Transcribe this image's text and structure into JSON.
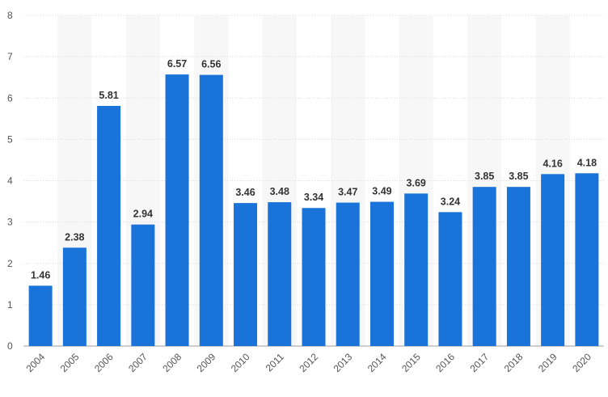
{
  "chart_data": {
    "type": "bar",
    "title": "",
    "xlabel": "",
    "ylabel": "",
    "ylim": [
      0,
      8
    ],
    "yticks": [
      "0",
      "1",
      "2",
      "3",
      "4",
      "5",
      "6",
      "7",
      "8"
    ],
    "grid": true,
    "legend": "none",
    "categories": [
      "2004",
      "2005",
      "2006",
      "2007",
      "2008",
      "2009",
      "2010",
      "2011",
      "2012",
      "2013",
      "2014",
      "2015",
      "2016",
      "2017",
      "2018",
      "2019",
      "2020"
    ],
    "values": [
      1.46,
      2.38,
      5.81,
      2.94,
      6.57,
      6.56,
      3.46,
      3.48,
      3.34,
      3.47,
      3.49,
      3.69,
      3.24,
      3.85,
      3.85,
      4.16,
      4.18
    ],
    "value_labels": [
      "1.46",
      "2.38",
      "5.81",
      "2.94",
      "6.57",
      "6.56",
      "3.46",
      "3.48",
      "3.34",
      "3.47",
      "3.49",
      "3.69",
      "3.24",
      "3.85",
      "3.85",
      "4.16",
      "4.18"
    ],
    "bar_color": "#1a73d9",
    "band_color": "#f7f7f7"
  }
}
